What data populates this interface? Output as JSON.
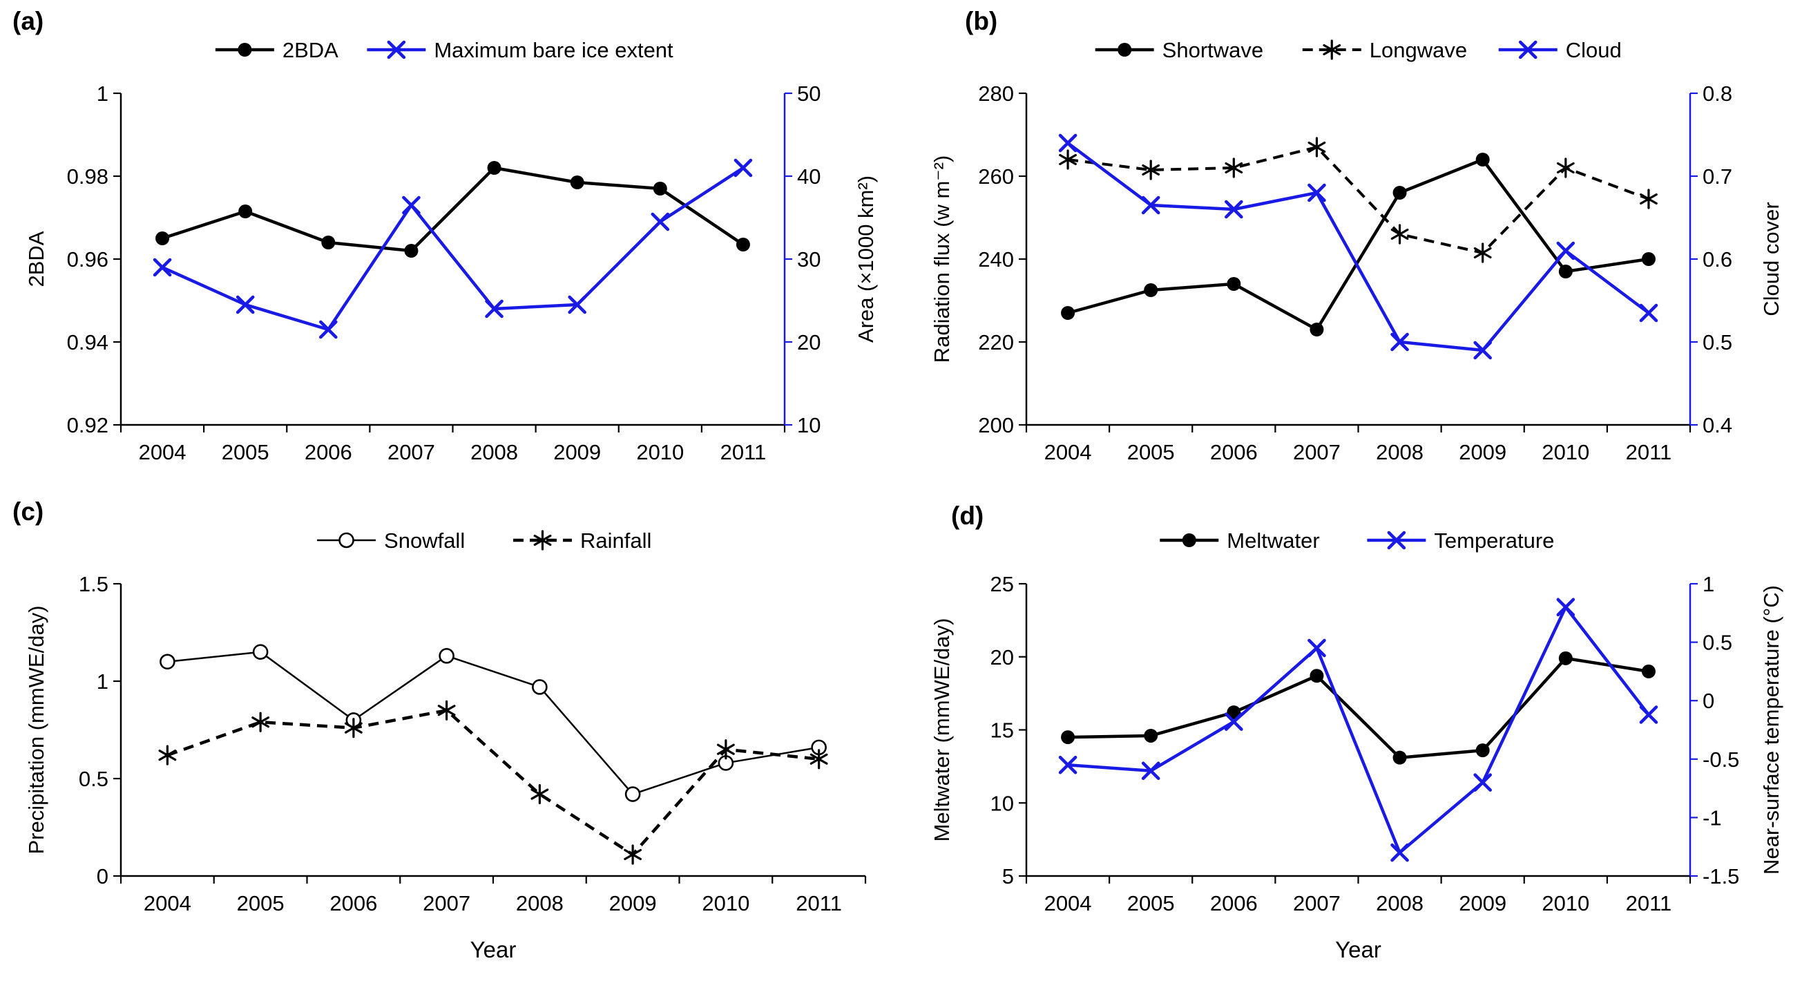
{
  "figure": {
    "background": "#ffffff"
  },
  "colors": {
    "black": "#000000",
    "blue": "#1a1ae6"
  },
  "chart_data": [
    {
      "panel_label": "(a)",
      "type": "line",
      "x": [
        "2004",
        "2005",
        "2006",
        "2007",
        "2008",
        "2009",
        "2010",
        "2011"
      ],
      "xlabel": "",
      "grid": false,
      "legend_position": "top",
      "left_axis": {
        "label": "2BDA",
        "min": 0.92,
        "max": 1,
        "ticks": [
          0.92,
          0.94,
          0.96,
          0.98,
          1
        ],
        "tick_labels": [
          "0.92",
          "0.94",
          "0.96",
          "0.98",
          "1"
        ],
        "color": "#000000"
      },
      "right_axis": {
        "label": "Area (×1000 km²)",
        "min": 10,
        "max": 50,
        "ticks": [
          10,
          20,
          30,
          40,
          50
        ],
        "tick_labels": [
          "10",
          "20",
          "30",
          "40",
          "50"
        ],
        "color": "#1a1ae6"
      },
      "series": [
        {
          "name": "2BDA",
          "axis": "left",
          "color": "#000000",
          "line": "solid",
          "width": 4.5,
          "marker": "circle",
          "values": [
            0.965,
            0.9715,
            0.964,
            0.962,
            0.982,
            0.9785,
            0.977,
            0.9635
          ]
        },
        {
          "name": "Maximum bare ice extent",
          "axis": "right",
          "color": "#1a1ae6",
          "line": "solid",
          "width": 4.5,
          "marker": "x",
          "values": [
            29,
            24.5,
            21.5,
            36.5,
            24,
            24.5,
            34.5,
            41
          ]
        }
      ]
    },
    {
      "panel_label": "(b)",
      "type": "line",
      "x": [
        "2004",
        "2005",
        "2006",
        "2007",
        "2008",
        "2009",
        "2010",
        "2011"
      ],
      "xlabel": "",
      "grid": false,
      "legend_position": "top",
      "left_axis": {
        "label": "Radiation flux (w m⁻²)",
        "min": 200,
        "max": 280,
        "ticks": [
          200,
          220,
          240,
          260,
          280
        ],
        "tick_labels": [
          "200",
          "220",
          "240",
          "260",
          "280"
        ],
        "color": "#000000"
      },
      "right_axis": {
        "label": "Cloud cover",
        "min": 0.4,
        "max": 0.8,
        "ticks": [
          0.4,
          0.5,
          0.6,
          0.7,
          0.8
        ],
        "tick_labels": [
          "0.4",
          "0.5",
          "0.6",
          "0.7",
          "0.8"
        ],
        "color": "#1a1ae6"
      },
      "series": [
        {
          "name": "Shortwave",
          "axis": "left",
          "color": "#000000",
          "line": "solid",
          "width": 4.5,
          "marker": "circle",
          "values": [
            227,
            232.5,
            234,
            223,
            256,
            264,
            237,
            240
          ]
        },
        {
          "name": "Longwave",
          "axis": "left",
          "color": "#000000",
          "line": "dashed",
          "width": 4,
          "marker": "asterisk",
          "values": [
            264,
            261.5,
            262,
            267,
            246,
            241.5,
            262,
            254.5
          ]
        },
        {
          "name": "Cloud",
          "axis": "right",
          "color": "#1a1ae6",
          "line": "solid",
          "width": 4.5,
          "marker": "x",
          "values": [
            0.74,
            0.665,
            0.66,
            0.68,
            0.5,
            0.49,
            0.61,
            0.535
          ]
        }
      ]
    },
    {
      "panel_label": "(c)",
      "type": "line",
      "x": [
        "2004",
        "2005",
        "2006",
        "2007",
        "2008",
        "2009",
        "2010",
        "2011"
      ],
      "xlabel": "Year",
      "grid": false,
      "legend_position": "top",
      "left_axis": {
        "label": "Precipitation (mmWE/day)",
        "min": 0,
        "max": 1.5,
        "ticks": [
          0,
          0.5,
          1,
          1.5
        ],
        "tick_labels": [
          "0",
          "0.5",
          "1",
          "1.5"
        ],
        "color": "#000000"
      },
      "right_axis": null,
      "series": [
        {
          "name": "Snowfall",
          "axis": "left",
          "color": "#000000",
          "line": "solid",
          "width": 2.5,
          "marker": "circle-open",
          "values": [
            1.1,
            1.15,
            0.8,
            1.13,
            0.97,
            0.42,
            0.58,
            0.66
          ]
        },
        {
          "name": "Rainfall",
          "axis": "left",
          "color": "#000000",
          "line": "dashed",
          "width": 4.5,
          "marker": "asterisk",
          "values": [
            0.62,
            0.79,
            0.76,
            0.85,
            0.42,
            0.11,
            0.65,
            0.6
          ]
        }
      ]
    },
    {
      "panel_label": "(d)",
      "type": "line",
      "x": [
        "2004",
        "2005",
        "2006",
        "2007",
        "2008",
        "2009",
        "2010",
        "2011"
      ],
      "xlabel": "Year",
      "grid": false,
      "legend_position": "top",
      "left_axis": {
        "label": "Meltwater (mmWE/day)",
        "min": 5,
        "max": 25,
        "ticks": [
          5,
          10,
          15,
          20,
          25
        ],
        "tick_labels": [
          "5",
          "10",
          "15",
          "20",
          "25"
        ],
        "color": "#000000"
      },
      "right_axis": {
        "label": "Near-surface temperature (°C)",
        "min": -1.5,
        "max": 1,
        "ticks": [
          -1.5,
          -1,
          -0.5,
          0,
          0.5,
          1
        ],
        "tick_labels": [
          "-1.5",
          "-1",
          "-0.5",
          "0",
          "0.5",
          "1"
        ],
        "color": "#1a1ae6"
      },
      "series": [
        {
          "name": "Meltwater",
          "axis": "left",
          "color": "#000000",
          "line": "solid",
          "width": 4.5,
          "marker": "circle",
          "values": [
            14.5,
            14.6,
            16.2,
            18.7,
            13.1,
            13.6,
            19.9,
            19.0
          ]
        },
        {
          "name": "Temperature",
          "axis": "right",
          "color": "#1a1ae6",
          "line": "solid",
          "width": 4.5,
          "marker": "x",
          "values": [
            -0.55,
            -0.6,
            -0.18,
            0.45,
            -1.3,
            -0.7,
            0.8,
            -0.12
          ]
        }
      ]
    }
  ]
}
